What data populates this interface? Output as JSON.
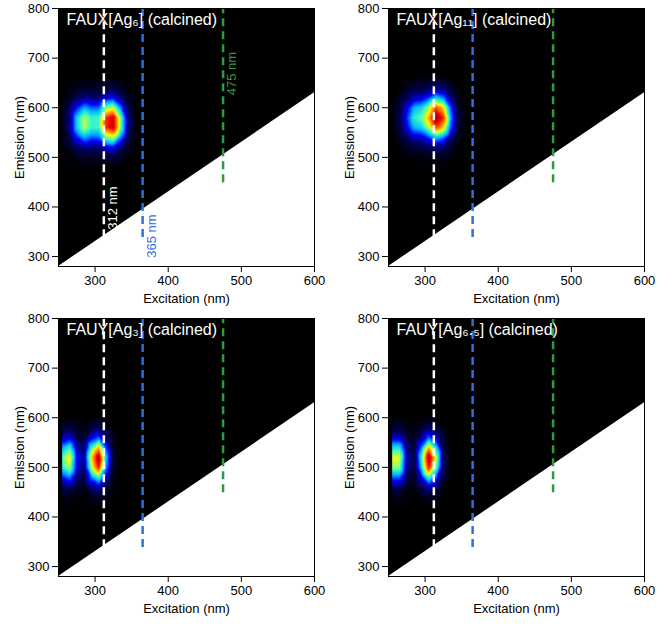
{
  "chart_data": [
    {
      "type": "heatmap",
      "title": "FAUX[Ag₆] (calcined)",
      "x_label": "Excitation (nm)",
      "y_label": "Emission (nm)",
      "xlim": [
        250,
        600
      ],
      "xticks": [
        300,
        400,
        500,
        600
      ],
      "ylim": [
        280,
        800
      ],
      "yticks": [
        300,
        400,
        500,
        600,
        700,
        800
      ],
      "zlim": [
        0,
        1
      ],
      "cutoff": {
        "excitation": [
          250,
          600
        ],
        "emission": [
          280,
          630
        ]
      },
      "excitation": [
        255,
        265,
        275,
        285,
        295,
        305,
        315,
        325,
        335,
        345,
        355
      ],
      "emission": [
        480,
        500,
        520,
        540,
        560,
        580,
        600,
        620,
        640,
        660
      ],
      "intensity": [
        [
          0,
          0,
          0,
          0.01,
          0.01,
          0.01,
          0.01,
          0.01,
          0.01,
          0,
          0
        ],
        [
          0,
          0.01,
          0.03,
          0.04,
          0.04,
          0.04,
          0.06,
          0.07,
          0.04,
          0.01,
          0
        ],
        [
          0.01,
          0.04,
          0.11,
          0.15,
          0.13,
          0.13,
          0.22,
          0.24,
          0.14,
          0.04,
          0.01
        ],
        [
          0.02,
          0.09,
          0.26,
          0.37,
          0.31,
          0.32,
          0.53,
          0.59,
          0.34,
          0.1,
          0.01
        ],
        [
          0.03,
          0.14,
          0.41,
          0.58,
          0.48,
          0.49,
          0.83,
          0.92,
          0.53,
          0.15,
          0.02
        ],
        [
          0.03,
          0.14,
          0.41,
          0.58,
          0.48,
          0.49,
          0.83,
          0.92,
          0.53,
          0.15,
          0.02
        ],
        [
          0.02,
          0.09,
          0.26,
          0.37,
          0.31,
          0.32,
          0.53,
          0.59,
          0.34,
          0.1,
          0.01
        ],
        [
          0.01,
          0.04,
          0.11,
          0.15,
          0.13,
          0.13,
          0.22,
          0.24,
          0.14,
          0.04,
          0.01
        ],
        [
          0,
          0.01,
          0.03,
          0.04,
          0.04,
          0.04,
          0.06,
          0.07,
          0.04,
          0.01,
          0
        ],
        [
          0,
          0,
          0,
          0.01,
          0.01,
          0.01,
          0.01,
          0.01,
          0.01,
          0,
          0
        ]
      ],
      "lines": [
        {
          "x": 312,
          "color": "#ffffff",
          "line_style": "dashed",
          "label": "312 nm"
        },
        {
          "x": 365,
          "color": "#2f6fe0",
          "line_style": "dashed",
          "label": "365 nm"
        },
        {
          "x": 475,
          "color": "#2e9b3d",
          "line_style": "dashed",
          "label": "475 nm"
        }
      ]
    },
    {
      "type": "heatmap",
      "title": "FAUX[Ag₁₁] (calcined)",
      "x_label": "Excitation (nm)",
      "y_label": "Emission (nm)",
      "xlim": [
        250,
        600
      ],
      "xticks": [
        300,
        400,
        500,
        600
      ],
      "ylim": [
        280,
        800
      ],
      "yticks": [
        300,
        400,
        500,
        600,
        700,
        800
      ],
      "zlim": [
        0,
        1
      ],
      "cutoff": {
        "excitation": [
          250,
          600
        ],
        "emission": [
          280,
          630
        ]
      },
      "excitation": [
        255,
        265,
        275,
        285,
        295,
        305,
        315,
        325,
        335,
        345,
        355
      ],
      "emission": [
        480,
        500,
        520,
        540,
        560,
        580,
        600,
        620,
        640,
        660
      ],
      "intensity": [
        [
          0,
          0,
          0,
          0,
          0.01,
          0.01,
          0.01,
          0.01,
          0,
          0,
          0
        ],
        [
          0,
          0,
          0.01,
          0.01,
          0.02,
          0.02,
          0.03,
          0.03,
          0.01,
          0,
          0
        ],
        [
          0,
          0.01,
          0.04,
          0.07,
          0.07,
          0.1,
          0.14,
          0.12,
          0.05,
          0.01,
          0
        ],
        [
          0,
          0.04,
          0.11,
          0.19,
          0.21,
          0.29,
          0.41,
          0.34,
          0.15,
          0.03,
          0
        ],
        [
          0.01,
          0.07,
          0.22,
          0.38,
          0.42,
          0.57,
          0.8,
          0.67,
          0.3,
          0.06,
          0.01
        ],
        [
          0.01,
          0.09,
          0.27,
          0.47,
          0.52,
          0.71,
          1.0,
          0.84,
          0.37,
          0.08,
          0.01
        ],
        [
          0.01,
          0.07,
          0.22,
          0.38,
          0.42,
          0.57,
          0.8,
          0.67,
          0.3,
          0.06,
          0.01
        ],
        [
          0,
          0.04,
          0.11,
          0.19,
          0.21,
          0.29,
          0.41,
          0.34,
          0.15,
          0.03,
          0
        ],
        [
          0,
          0.01,
          0.04,
          0.07,
          0.07,
          0.1,
          0.14,
          0.12,
          0.05,
          0.01,
          0
        ],
        [
          0,
          0,
          0.01,
          0.01,
          0.02,
          0.02,
          0.03,
          0.03,
          0.01,
          0,
          0
        ]
      ],
      "lines": [
        {
          "x": 312,
          "color": "#ffffff",
          "line_style": "dashed"
        },
        {
          "x": 365,
          "color": "#2f6fe0",
          "line_style": "dashed"
        },
        {
          "x": 475,
          "color": "#2e9b3d",
          "line_style": "dashed"
        }
      ]
    },
    {
      "type": "heatmap",
      "title": "FAUY[Ag₃] (calcined)",
      "x_label": "Excitation (nm)",
      "y_label": "Emission (nm)",
      "xlim": [
        250,
        600
      ],
      "xticks": [
        300,
        400,
        500,
        600
      ],
      "ylim": [
        280,
        800
      ],
      "yticks": [
        300,
        400,
        500,
        600,
        700,
        800
      ],
      "zlim": [
        0,
        1
      ],
      "cutoff": {
        "excitation": [
          250,
          600
        ],
        "emission": [
          280,
          630
        ]
      },
      "excitation": [
        255,
        265,
        275,
        285,
        295,
        305,
        315,
        325,
        335
      ],
      "emission": [
        420,
        440,
        460,
        480,
        500,
        520,
        540,
        560,
        580,
        600
      ],
      "intensity": [
        [
          0.01,
          0.01,
          0,
          0,
          0.01,
          0.01,
          0,
          0,
          0
        ],
        [
          0.02,
          0.03,
          0.01,
          0.01,
          0.03,
          0.04,
          0.02,
          0,
          0
        ],
        [
          0.1,
          0.13,
          0.05,
          0.03,
          0.13,
          0.19,
          0.08,
          0.01,
          0
        ],
        [
          0.27,
          0.34,
          0.13,
          0.08,
          0.34,
          0.5,
          0.21,
          0.03,
          0
        ],
        [
          0.46,
          0.58,
          0.22,
          0.14,
          0.59,
          0.86,
          0.36,
          0.04,
          0
        ],
        [
          0.51,
          0.65,
          0.25,
          0.16,
          0.66,
          0.97,
          0.41,
          0.05,
          0
        ],
        [
          0.37,
          0.47,
          0.18,
          0.11,
          0.48,
          0.7,
          0.29,
          0.04,
          0
        ],
        [
          0.17,
          0.21,
          0.08,
          0.05,
          0.21,
          0.31,
          0.13,
          0.02,
          0
        ],
        [
          0.05,
          0.07,
          0.03,
          0.02,
          0.07,
          0.1,
          0.04,
          0.01,
          0
        ],
        [
          0.01,
          0.01,
          0.01,
          0,
          0.01,
          0.02,
          0.01,
          0,
          0
        ]
      ],
      "lines": [
        {
          "x": 312,
          "color": "#ffffff",
          "line_style": "dashed"
        },
        {
          "x": 365,
          "color": "#2f6fe0",
          "line_style": "dashed"
        },
        {
          "x": 475,
          "color": "#2e9b3d",
          "line_style": "dashed"
        }
      ]
    },
    {
      "type": "heatmap",
      "title": "FAUY[Ag₆.₅] (calcined)",
      "x_label": "Excitation (nm)",
      "y_label": "Emission (nm)",
      "xlim": [
        250,
        600
      ],
      "xticks": [
        300,
        400,
        500,
        600
      ],
      "ylim": [
        280,
        800
      ],
      "yticks": [
        300,
        400,
        500,
        600,
        700,
        800
      ],
      "zlim": [
        0,
        1
      ],
      "cutoff": {
        "excitation": [
          250,
          600
        ],
        "emission": [
          280,
          630
        ]
      },
      "excitation": [
        255,
        265,
        275,
        285,
        295,
        305,
        315,
        325,
        335
      ],
      "emission": [
        420,
        440,
        460,
        480,
        500,
        520,
        540,
        560,
        580,
        600
      ],
      "intensity": [
        [
          0.01,
          0.01,
          0,
          0,
          0,
          0.01,
          0.01,
          0,
          0
        ],
        [
          0.02,
          0.02,
          0.01,
          0,
          0.02,
          0.04,
          0.02,
          0,
          0
        ],
        [
          0.12,
          0.12,
          0.03,
          0.02,
          0.09,
          0.19,
          0.12,
          0.02,
          0
        ],
        [
          0.32,
          0.32,
          0.09,
          0.04,
          0.24,
          0.5,
          0.31,
          0.06,
          0.01
        ],
        [
          0.55,
          0.55,
          0.16,
          0.07,
          0.41,
          0.87,
          0.54,
          0.1,
          0.01
        ],
        [
          0.61,
          0.61,
          0.18,
          0.08,
          0.47,
          0.98,
          0.6,
          0.11,
          0.01
        ],
        [
          0.44,
          0.44,
          0.13,
          0.06,
          0.33,
          0.7,
          0.43,
          0.08,
          0.01
        ],
        [
          0.2,
          0.2,
          0.06,
          0.03,
          0.15,
          0.32,
          0.2,
          0.04,
          0
        ],
        [
          0.06,
          0.06,
          0.02,
          0.01,
          0.05,
          0.1,
          0.06,
          0.01,
          0
        ],
        [
          0.01,
          0.01,
          0,
          0,
          0.01,
          0.02,
          0.01,
          0,
          0
        ]
      ],
      "lines": [
        {
          "x": 312,
          "color": "#ffffff",
          "line_style": "dashed"
        },
        {
          "x": 365,
          "color": "#2f6fe0",
          "line_style": "dashed"
        },
        {
          "x": 475,
          "color": "#2e9b3d",
          "line_style": "dashed"
        }
      ]
    }
  ]
}
